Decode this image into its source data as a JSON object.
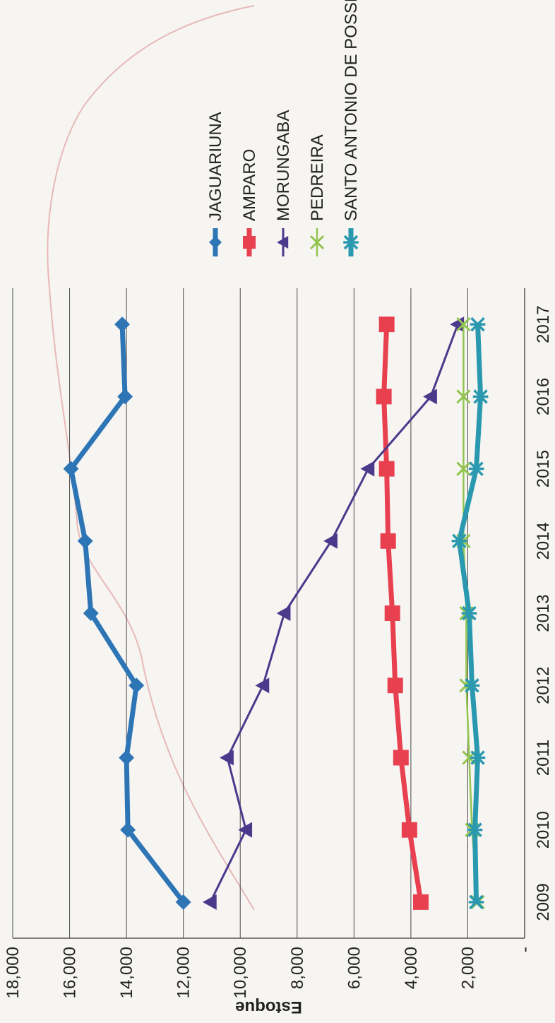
{
  "chart_data": {
    "type": "line",
    "title": "",
    "xlabel": "",
    "ylabel": "Estoque",
    "categories": [
      "2009",
      "2010",
      "2011",
      "2012",
      "2013",
      "2014",
      "2015",
      "2016",
      "2017"
    ],
    "ylim": [
      0,
      18000
    ],
    "yticks": [
      "-",
      "2,000",
      "4,000",
      "6,000",
      "8,000",
      "10,000",
      "12,000",
      "14,000",
      "16,000",
      "18,000"
    ],
    "grid": true,
    "legend_position": "right",
    "series": [
      {
        "name": "JAGUARIUNA",
        "color": "#2e75b6",
        "marker": "diamond",
        "width": 7,
        "values": [
          12000,
          13950,
          14000,
          13650,
          15250,
          15450,
          15950,
          14050,
          14150
        ]
      },
      {
        "name": "AMPARO",
        "color": "#e8404f",
        "marker": "square",
        "width": 7,
        "values": [
          3650,
          4050,
          4350,
          4550,
          4650,
          4800,
          4850,
          4950,
          4850
        ]
      },
      {
        "name": "MORUNGABA",
        "color": "#4a3a8c",
        "marker": "triangle",
        "width": 3,
        "values": [
          11050,
          9800,
          10450,
          9200,
          8450,
          6800,
          5500,
          3300,
          2350
        ]
      },
      {
        "name": "PEDREIRA",
        "color": "#92c44f",
        "marker": "x",
        "width": 2.5,
        "values": [
          1650,
          1850,
          1950,
          2050,
          2050,
          2150,
          2150,
          2150,
          2150
        ]
      },
      {
        "name": "SANTO ANTONIO DE POSSE",
        "color": "#2a99b0",
        "marker": "star",
        "width": 7,
        "values": [
          1700,
          1750,
          1650,
          1850,
          1950,
          2300,
          1700,
          1550,
          1650
        ]
      }
    ]
  }
}
